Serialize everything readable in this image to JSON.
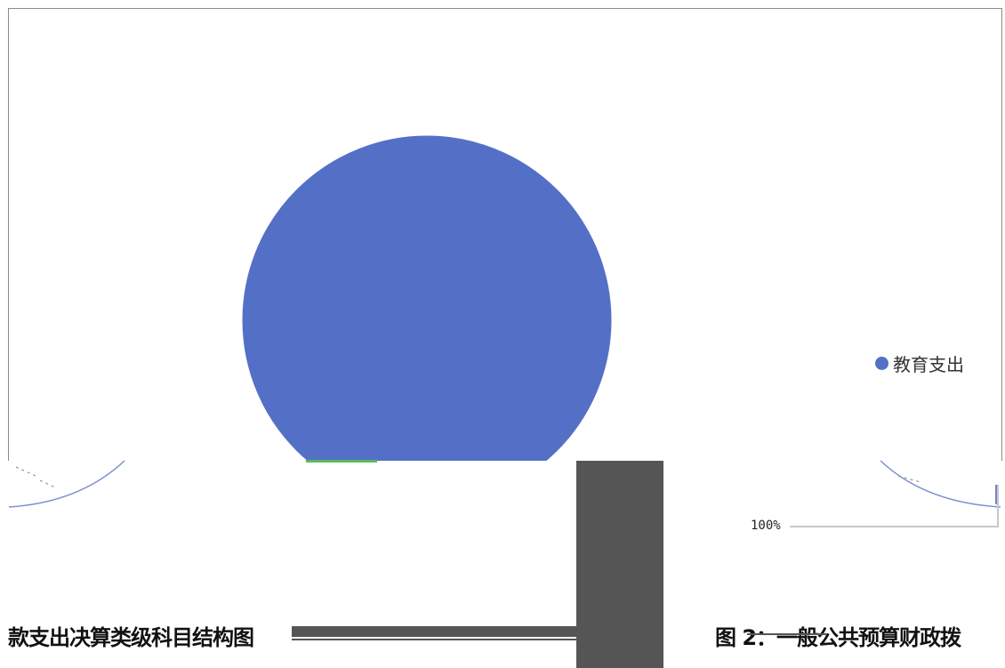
{
  "chart_data": {
    "type": "pie",
    "title": "",
    "slices": [
      {
        "name": "教育支出",
        "value": 100,
        "color": "#5470c6"
      }
    ],
    "data_label": "100%",
    "legend": {
      "placement": "right",
      "items": [
        "教育支出"
      ]
    }
  },
  "captions": {
    "left": "款支出决算类级科目结构图",
    "right": "图 2：一般公共预算财政拨"
  },
  "colors": {
    "pie_fill": "#5470c6",
    "green_sliver": "#5cb85c",
    "dark_bar": "#555555",
    "leader_line": "#c8c8c8"
  }
}
